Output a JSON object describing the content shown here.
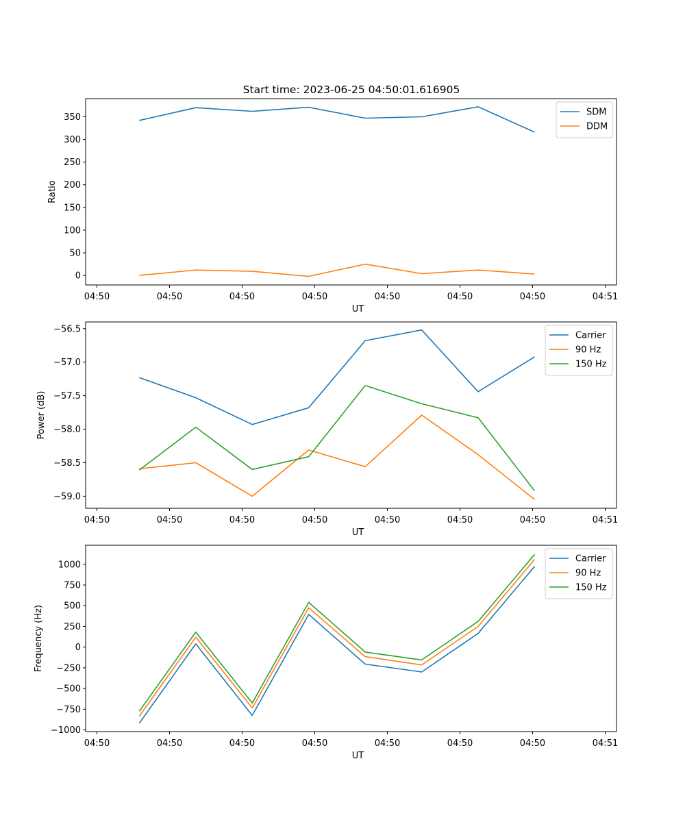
{
  "title": "Start time: 2023-06-25 04:50:01.616905",
  "chart_data": [
    {
      "type": "line",
      "title": "Start time: 2023-06-25 04:50:01.616905",
      "xlabel": "UT",
      "ylabel": "Ratio",
      "x_tick_labels": [
        "04:50",
        "04:50",
        "04:50",
        "04:50",
        "04:50",
        "04:50",
        "04:50",
        "04:51"
      ],
      "y_ticks": [
        0,
        50,
        100,
        150,
        200,
        250,
        300,
        350
      ],
      "ylim": [
        -21,
        390
      ],
      "xlim": [
        -0.2,
        9.2
      ],
      "x": [
        0.75,
        1.75,
        2.75,
        3.75,
        4.75,
        5.75,
        6.75,
        7.75
      ],
      "legend": "top-right",
      "series": [
        {
          "name": "SDM",
          "color": "#1f77b4",
          "values": [
            342,
            370,
            362,
            371,
            347,
            350,
            372,
            316
          ]
        },
        {
          "name": "DDM",
          "color": "#ff7f0e",
          "values": [
            0,
            12,
            9,
            -2,
            25,
            4,
            12,
            3
          ]
        }
      ]
    },
    {
      "type": "line",
      "xlabel": "UT",
      "ylabel": "Power (dB)",
      "x_tick_labels": [
        "04:50",
        "04:50",
        "04:50",
        "04:50",
        "04:50",
        "04:50",
        "04:50",
        "04:51"
      ],
      "y_ticks": [
        -59.0,
        -58.5,
        -58.0,
        -57.5,
        -57.0,
        -56.5
      ],
      "y_tick_labels": [
        "−59.0",
        "−58.5",
        "−58.0",
        "−57.5",
        "−57.0",
        "−56.5"
      ],
      "ylim": [
        -59.18,
        -56.4
      ],
      "xlim": [
        -0.2,
        9.2
      ],
      "x": [
        0.75,
        1.75,
        2.75,
        3.75,
        4.75,
        5.75,
        6.75,
        7.75
      ],
      "legend": "top-right",
      "series": [
        {
          "name": "Carrier",
          "color": "#1f77b4",
          "values": [
            -57.23,
            -57.53,
            -57.93,
            -57.68,
            -56.68,
            -56.52,
            -57.44,
            -56.92
          ]
        },
        {
          "name": "90 Hz",
          "color": "#ff7f0e",
          "values": [
            -58.59,
            -58.5,
            -59.0,
            -58.31,
            -58.56,
            -57.79,
            -58.38,
            -59.05
          ]
        },
        {
          "name": "150 Hz",
          "color": "#2ca02c",
          "values": [
            -58.61,
            -57.97,
            -58.6,
            -58.41,
            -57.35,
            -57.62,
            -57.83,
            -58.92
          ]
        }
      ]
    },
    {
      "type": "line",
      "xlabel": "UT",
      "ylabel": "Frequency (Hz)",
      "x_tick_labels": [
        "04:50",
        "04:50",
        "04:50",
        "04:50",
        "04:50",
        "04:50",
        "04:50",
        "04:51"
      ],
      "y_ticks": [
        -1000,
        -750,
        -500,
        -250,
        0,
        250,
        500,
        750,
        1000
      ],
      "y_tick_labels": [
        "−1000",
        "−750",
        "−500",
        "−250",
        "0",
        "250",
        "500",
        "750",
        "1000"
      ],
      "ylim": [
        -1020,
        1230
      ],
      "xlim": [
        -0.2,
        9.2
      ],
      "x": [
        0.75,
        1.75,
        2.75,
        3.75,
        4.75,
        5.75,
        6.75,
        7.75
      ],
      "legend": "top-right",
      "series": [
        {
          "name": "Carrier",
          "color": "#1f77b4",
          "values": [
            -920,
            40,
            -825,
            395,
            -205,
            -300,
            165,
            975
          ]
        },
        {
          "name": "90 Hz",
          "color": "#ff7f0e",
          "values": [
            -835,
            120,
            -735,
            475,
            -115,
            -215,
            250,
            1060
          ]
        },
        {
          "name": "150 Hz",
          "color": "#2ca02c",
          "values": [
            -775,
            180,
            -675,
            540,
            -60,
            -155,
            310,
            1120
          ]
        }
      ]
    }
  ]
}
